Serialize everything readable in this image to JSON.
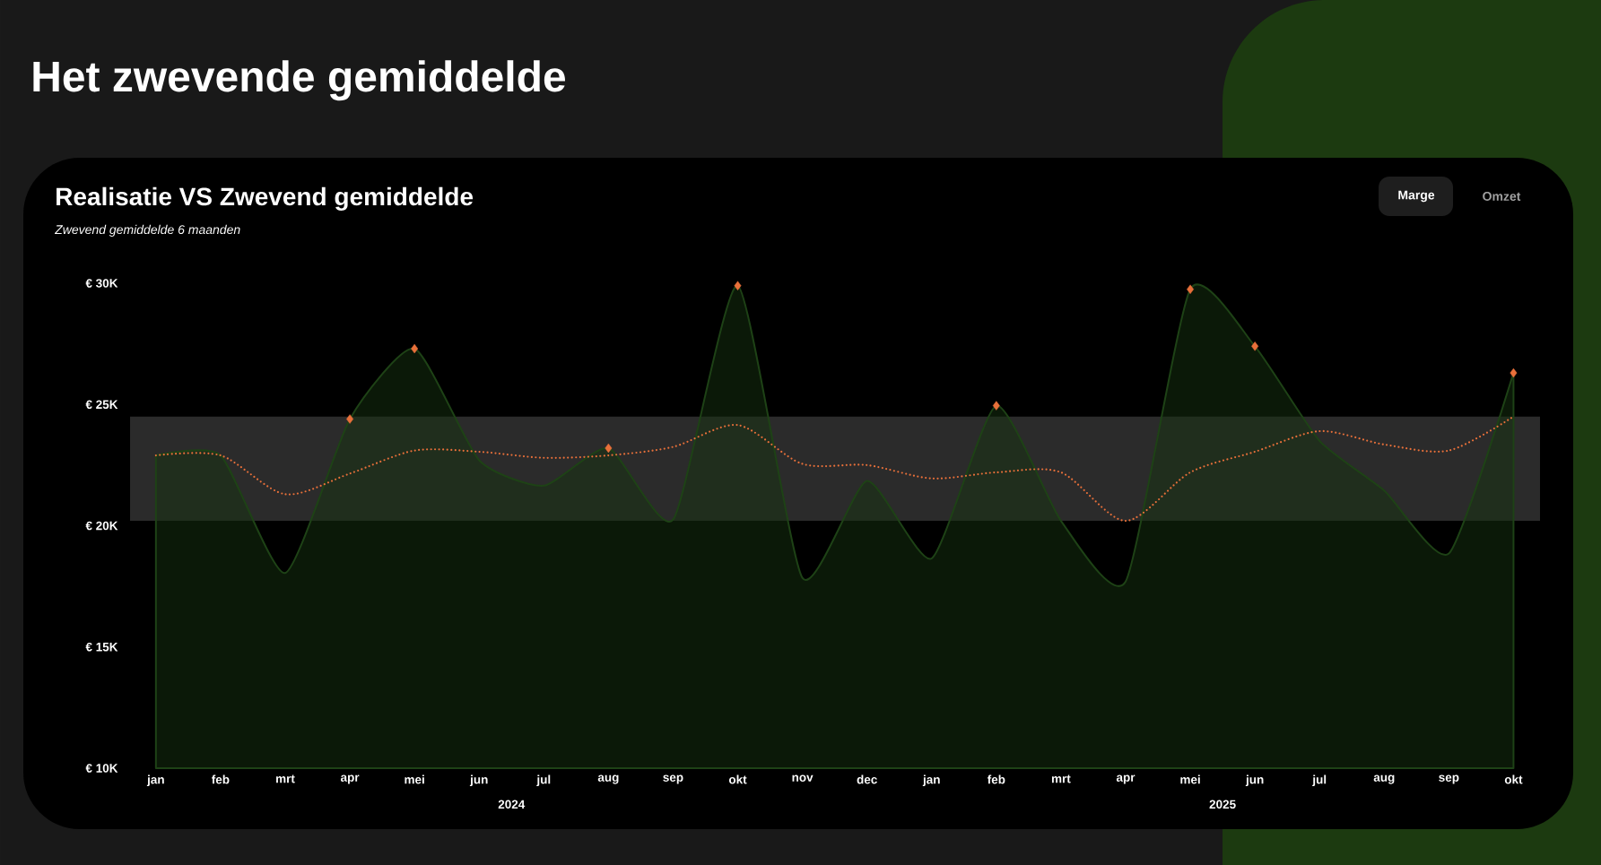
{
  "chart_data": {
    "type": "area",
    "title": "Realisatie VS Zwevend gemiddelde",
    "subtitle": "Zwevend gemiddelde 6 maanden",
    "annotations": [
      "Het zwevende gemiddelde",
      "Marge",
      "Omzet",
      "2024",
      "2025"
    ],
    "categories": [
      "jan",
      "feb",
      "mrt",
      "apr",
      "mei",
      "jun",
      "jul",
      "aug",
      "sep",
      "okt",
      "nov",
      "dec",
      "jan",
      "feb",
      "mrt",
      "apr",
      "mei",
      "jun",
      "jul",
      "aug",
      "sep",
      "okt"
    ],
    "ylim": [
      10000,
      30000
    ],
    "yticks": [
      {
        "value": 10000,
        "label": "€ 10K"
      },
      {
        "value": 15000,
        "label": "€ 15K"
      },
      {
        "value": 20000,
        "label": "€ 20K"
      },
      {
        "value": 25000,
        "label": "€ 25K"
      },
      {
        "value": 30000,
        "label": "€ 30K"
      }
    ],
    "bands": [
      {
        "axis": "y",
        "from": 20200,
        "to": 24500,
        "color": "#2b2b2b"
      }
    ],
    "series": [
      {
        "color": "#1e4216",
        "values": [
          22900,
          22900,
          18050,
          24400,
          27300,
          22700,
          21650,
          23200,
          20250,
          29900,
          17850,
          21850,
          18650,
          24950,
          20200,
          17700,
          29750,
          27400,
          23500,
          21450,
          18850,
          26300
        ]
      },
      {
        "type": "line",
        "color": "#e8703a",
        "line_style": "dotted",
        "marker": "none",
        "values": [
          22900,
          22900,
          21300,
          22150,
          23100,
          23050,
          22800,
          22900,
          23250,
          24150,
          22550,
          22500,
          21950,
          22200,
          22200,
          20200,
          22200,
          23050,
          23900,
          23350,
          23100,
          24500
        ]
      },
      {
        "type": "scatter",
        "color": "#e8703a",
        "marker": "diamond",
        "values": [
          null,
          null,
          null,
          24400,
          27300,
          null,
          null,
          23200,
          null,
          29900,
          null,
          null,
          null,
          24950,
          null,
          null,
          29750,
          27400,
          null,
          null,
          null,
          26300
        ]
      }
    ]
  }
}
